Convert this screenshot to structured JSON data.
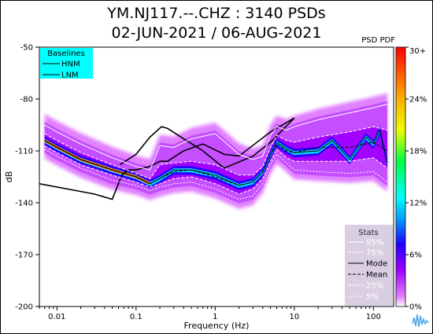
{
  "header": {
    "title_line1": "YM.NJ117.--.CHZ : 3140 PSDs",
    "title_line2": "02-JUN-2021 / 06-AUG-2021",
    "pdf_label": "PSD PDF"
  },
  "colors": {
    "ppsd_gradient": [
      "#ffffff",
      "#e07cff",
      "#9e00ff",
      "#1f00ff",
      "#00a0ff",
      "#00ffff",
      "#00ff40",
      "#f0ff00",
      "#ffa000",
      "#ff0000"
    ],
    "baselines_box": "#00ffff",
    "stats_box": "#d8cce0"
  },
  "chart_data": {
    "type": "line",
    "xlabel": "Frequency (Hz)",
    "ylabel": "dB",
    "xscale": "log",
    "xlim": [
      0.006,
      180
    ],
    "ylim": [
      -200,
      -50
    ],
    "x_ticks": [
      0.01,
      0.1,
      1,
      10,
      100
    ],
    "x_tick_labels": [
      "0.01",
      "0.1",
      "1",
      "10",
      "100"
    ],
    "y_ticks": [
      -50,
      -80,
      -110,
      -140,
      -170,
      -200
    ],
    "y_tick_labels": [
      "-50",
      "-80",
      "-110",
      "-140",
      "-170",
      "-200"
    ],
    "colorbar": {
      "ticks": [
        0,
        6,
        12,
        18,
        24,
        30
      ],
      "tick_labels": [
        "0%",
        "6%",
        "12%",
        "18%",
        "24%",
        "30+"
      ]
    },
    "baselines_legend": {
      "title": "Baselines",
      "entries": [
        "HNM",
        "LNM"
      ]
    },
    "stats_legend": {
      "title": "Stats",
      "entries": [
        "95%",
        "75%",
        "Mode",
        "Mean",
        "25%",
        "5%"
      ]
    },
    "series": [
      {
        "name": "HNM",
        "x": [
          0.0625,
          0.1,
          0.15,
          0.21,
          0.25,
          0.4,
          0.7,
          1.3,
          3,
          5,
          10
        ],
        "y": [
          -118,
          -112,
          -102,
          -96,
          -97,
          -103,
          -110,
          -120,
          -113,
          -105,
          -91
        ]
      },
      {
        "name": "LNM",
        "x": [
          0.006,
          0.03,
          0.05,
          0.066,
          0.08,
          0.1,
          0.15,
          0.2,
          0.25,
          0.4,
          0.7,
          1.3,
          2,
          5,
          10
        ],
        "y": [
          -129,
          -135,
          -138,
          -124,
          -121,
          -121,
          -119,
          -116,
          -116,
          -110,
          -106,
          -112,
          -113,
          -99,
          -91
        ]
      },
      {
        "name": "95%",
        "x": [
          0.007,
          0.01,
          0.02,
          0.05,
          0.1,
          0.15,
          0.2,
          0.3,
          0.5,
          1,
          2,
          3,
          4,
          5,
          6,
          8,
          10,
          20,
          50,
          100,
          150
        ],
        "y": [
          -95,
          -99,
          -106,
          -114,
          -119,
          -121,
          -107,
          -108,
          -103,
          -100,
          -112,
          -115,
          -113,
          -101,
          -96,
          -98,
          -96,
          -92,
          -88,
          -85,
          -83
        ]
      },
      {
        "name": "75%",
        "x": [
          0.007,
          0.01,
          0.02,
          0.05,
          0.1,
          0.15,
          0.2,
          0.3,
          0.5,
          1,
          2,
          3,
          4,
          5,
          6,
          8,
          10,
          20,
          50,
          100,
          150
        ],
        "y": [
          -100,
          -104,
          -111,
          -118,
          -123,
          -126,
          -118,
          -117,
          -116,
          -118,
          -124,
          -124,
          -119,
          -108,
          -101,
          -104,
          -105,
          -102,
          -99,
          -96,
          -98
        ]
      },
      {
        "name": "Mode",
        "x": [
          0.007,
          0.01,
          0.02,
          0.05,
          0.1,
          0.15,
          0.2,
          0.3,
          0.5,
          1,
          2,
          3,
          4,
          5,
          6,
          8,
          10,
          20,
          30,
          50,
          80,
          100,
          120,
          150
        ],
        "y": [
          -104,
          -108,
          -115,
          -121,
          -125,
          -129,
          -126,
          -121,
          -121,
          -124,
          -130,
          -128,
          -122,
          -112,
          -105,
          -109,
          -111,
          -110,
          -104,
          -115,
          -102,
          -106,
          -98,
          -117
        ]
      },
      {
        "name": "Mean",
        "x": [
          0.007,
          0.01,
          0.02,
          0.05,
          0.1,
          0.15,
          0.2,
          0.3,
          0.5,
          1,
          2,
          3,
          4,
          5,
          6,
          8,
          10,
          20,
          50,
          100,
          150
        ],
        "y": [
          -104,
          -108,
          -115,
          -121,
          -125,
          -129,
          -126,
          -122,
          -121,
          -125,
          -130,
          -128,
          -122,
          -112,
          -106,
          -110,
          -111,
          -108,
          -108,
          -105,
          -110
        ]
      },
      {
        "name": "25%",
        "x": [
          0.007,
          0.01,
          0.02,
          0.05,
          0.1,
          0.15,
          0.2,
          0.3,
          0.5,
          1,
          2,
          3,
          4,
          5,
          6,
          8,
          10,
          20,
          50,
          100,
          150
        ],
        "y": [
          -107,
          -111,
          -118,
          -124,
          -128,
          -131,
          -129,
          -126,
          -125,
          -129,
          -135,
          -132,
          -126,
          -116,
          -109,
          -114,
          -116,
          -116,
          -116,
          -114,
          -120
        ]
      },
      {
        "name": "5%",
        "x": [
          0.007,
          0.01,
          0.02,
          0.05,
          0.1,
          0.15,
          0.2,
          0.3,
          0.5,
          1,
          2,
          3,
          4,
          5,
          6,
          8,
          10,
          20,
          50,
          100,
          150
        ],
        "y": [
          -109,
          -113,
          -120,
          -127,
          -130,
          -133,
          -131,
          -129,
          -128,
          -132,
          -138,
          -136,
          -129,
          -118,
          -112,
          -117,
          -121,
          -122,
          -123,
          -122,
          -128
        ]
      }
    ]
  }
}
